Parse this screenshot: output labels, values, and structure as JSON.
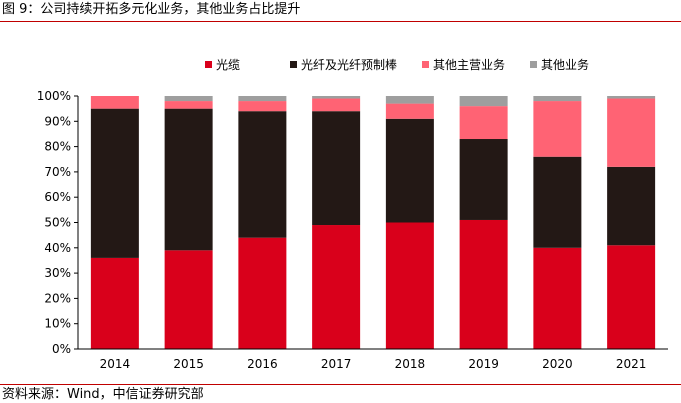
{
  "figure": {
    "title": "图 9：公司持续开拓多元化业务，其他业务占比提升",
    "source": "资料来源：Wind，中信证券研究部"
  },
  "chart_data": {
    "type": "bar",
    "stacked": true,
    "categories": [
      "2014",
      "2015",
      "2016",
      "2017",
      "2018",
      "2019",
      "2020",
      "2021"
    ],
    "series": [
      {
        "name": "光缆",
        "color": "#d9001b",
        "values": [
          36,
          39,
          44,
          49,
          50,
          51,
          40,
          41
        ]
      },
      {
        "name": "光纤及光纤预制棒",
        "color": "#231815",
        "values": [
          59,
          56,
          50,
          45,
          41,
          32,
          36,
          31
        ]
      },
      {
        "name": "其他主营业务",
        "color": "#ff6374",
        "values": [
          5,
          3,
          4,
          5,
          6,
          13,
          22,
          27
        ]
      },
      {
        "name": "其他业务",
        "color": "#9e9e9e",
        "values": [
          0,
          2,
          2,
          1,
          3,
          4,
          2,
          1
        ]
      }
    ],
    "ylim": [
      0,
      100
    ],
    "yticks": [
      "0%",
      "10%",
      "20%",
      "30%",
      "40%",
      "50%",
      "60%",
      "70%",
      "80%",
      "90%",
      "100%"
    ],
    "legend_position": "top",
    "grid": false
  }
}
